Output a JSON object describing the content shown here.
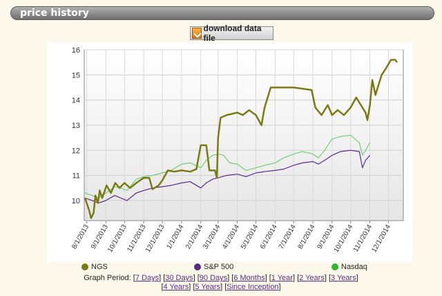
{
  "section": {
    "title": "price history"
  },
  "download": {
    "label": "download data file",
    "icon": "download-file-icon"
  },
  "chart_data": {
    "type": "line",
    "ylim": [
      9.2,
      16
    ],
    "yticks": [
      10,
      11,
      12,
      13,
      14,
      15,
      16
    ],
    "xlabels": [
      "8/1/2013",
      "9/1/2013",
      "10/1/2013",
      "11/1/2013",
      "12/1/2013",
      "1/1/2014",
      "2/1/2014",
      "3/1/2014",
      "4/1/2014",
      "5/1/2014",
      "6/1/2014",
      "7/1/2014",
      "8/1/2014",
      "9/1/2014",
      "10/1/2014",
      "11/1/2014",
      "12/1/2014"
    ],
    "grid": true,
    "legend_position": "bottom",
    "series": [
      {
        "name": "NGS",
        "color": "#7a7a14",
        "points": [
          [
            "2013-07-29",
            10.1
          ],
          [
            "2013-08-01",
            9.9
          ],
          [
            "2013-08-05",
            9.6
          ],
          [
            "2013-08-08",
            9.3
          ],
          [
            "2013-08-12",
            9.5
          ],
          [
            "2013-08-15",
            10.2
          ],
          [
            "2013-08-19",
            9.9
          ],
          [
            "2013-08-22",
            10.4
          ],
          [
            "2013-08-26",
            10.1
          ],
          [
            "2013-09-02",
            10.6
          ],
          [
            "2013-09-09",
            10.3
          ],
          [
            "2013-09-16",
            10.7
          ],
          [
            "2013-09-23",
            10.5
          ],
          [
            "2013-10-01",
            10.7
          ],
          [
            "2013-10-10",
            10.5
          ],
          [
            "2013-10-20",
            10.7
          ],
          [
            "2013-11-01",
            10.9
          ],
          [
            "2013-11-10",
            10.9
          ],
          [
            "2013-11-15",
            10.45
          ],
          [
            "2013-11-25",
            10.6
          ],
          [
            "2013-12-01",
            10.8
          ],
          [
            "2013-12-10",
            11.2
          ],
          [
            "2013-12-20",
            11.15
          ],
          [
            "2014-01-01",
            11.2
          ],
          [
            "2014-01-15",
            11.15
          ],
          [
            "2014-01-25",
            11.25
          ],
          [
            "2014-02-01",
            12.2
          ],
          [
            "2014-02-10",
            12.2
          ],
          [
            "2014-02-15",
            11.2
          ],
          [
            "2014-02-24",
            11.2
          ],
          [
            "2014-02-27",
            10.9
          ],
          [
            "2014-03-01",
            12.5
          ],
          [
            "2014-03-05",
            13.3
          ],
          [
            "2014-03-15",
            13.4
          ],
          [
            "2014-04-01",
            13.5
          ],
          [
            "2014-04-10",
            13.4
          ],
          [
            "2014-04-20",
            13.6
          ],
          [
            "2014-05-01",
            13.4
          ],
          [
            "2014-05-10",
            13.0
          ],
          [
            "2014-05-15",
            13.7
          ],
          [
            "2014-05-25",
            14.5
          ],
          [
            "2014-06-10",
            14.5
          ],
          [
            "2014-07-01",
            14.5
          ],
          [
            "2014-07-30",
            14.4
          ],
          [
            "2014-08-05",
            13.7
          ],
          [
            "2014-08-15",
            13.4
          ],
          [
            "2014-08-25",
            13.8
          ],
          [
            "2014-09-01",
            13.4
          ],
          [
            "2014-09-10",
            13.6
          ],
          [
            "2014-09-20",
            13.4
          ],
          [
            "2014-10-01",
            13.7
          ],
          [
            "2014-10-10",
            14.1
          ],
          [
            "2014-10-20",
            13.7
          ],
          [
            "2014-10-25",
            13.5
          ],
          [
            "2014-10-28",
            13.2
          ],
          [
            "2014-11-01",
            13.8
          ],
          [
            "2014-11-05",
            14.8
          ],
          [
            "2014-11-10",
            14.2
          ],
          [
            "2014-11-20",
            15.0
          ],
          [
            "2014-11-28",
            15.3
          ],
          [
            "2014-12-05",
            15.6
          ],
          [
            "2014-12-12",
            15.6
          ],
          [
            "2014-12-15",
            15.5
          ]
        ]
      },
      {
        "name": "S&P 500",
        "color": "#5a2a8a",
        "points": [
          [
            "2013-07-29",
            10.1
          ],
          [
            "2013-08-10",
            10.0
          ],
          [
            "2013-08-20",
            9.9
          ],
          [
            "2013-09-01",
            10.0
          ],
          [
            "2013-09-15",
            10.2
          ],
          [
            "2013-09-25",
            10.1
          ],
          [
            "2013-10-05",
            10.0
          ],
          [
            "2013-10-20",
            10.3
          ],
          [
            "2013-11-01",
            10.4
          ],
          [
            "2013-11-15",
            10.5
          ],
          [
            "2013-12-01",
            10.55
          ],
          [
            "2013-12-15",
            10.6
          ],
          [
            "2014-01-01",
            10.7
          ],
          [
            "2014-01-15",
            10.75
          ],
          [
            "2014-02-01",
            10.5
          ],
          [
            "2014-02-10",
            10.7
          ],
          [
            "2014-02-20",
            10.85
          ],
          [
            "2014-03-01",
            10.9
          ],
          [
            "2014-03-15",
            11.0
          ],
          [
            "2014-04-01",
            11.05
          ],
          [
            "2014-04-15",
            10.95
          ],
          [
            "2014-05-01",
            11.1
          ],
          [
            "2014-05-15",
            11.15
          ],
          [
            "2014-06-01",
            11.2
          ],
          [
            "2014-06-15",
            11.25
          ],
          [
            "2014-07-01",
            11.4
          ],
          [
            "2014-07-15",
            11.5
          ],
          [
            "2014-08-01",
            11.55
          ],
          [
            "2014-08-10",
            11.45
          ],
          [
            "2014-08-20",
            11.6
          ],
          [
            "2014-09-01",
            11.8
          ],
          [
            "2014-09-15",
            11.95
          ],
          [
            "2014-10-01",
            12.0
          ],
          [
            "2014-10-15",
            11.95
          ],
          [
            "2014-10-20",
            11.3
          ],
          [
            "2014-10-25",
            11.6
          ],
          [
            "2014-11-01",
            11.8
          ]
        ]
      },
      {
        "name": "Nasdaq",
        "color": "#6fd06f",
        "points": [
          [
            "2013-07-29",
            10.3
          ],
          [
            "2013-08-10",
            10.2
          ],
          [
            "2013-08-20",
            10.1
          ],
          [
            "2013-09-01",
            10.3
          ],
          [
            "2013-09-15",
            10.55
          ],
          [
            "2013-09-25",
            10.5
          ],
          [
            "2013-10-05",
            10.4
          ],
          [
            "2013-10-20",
            10.85
          ],
          [
            "2013-11-01",
            10.95
          ],
          [
            "2013-11-15",
            11.0
          ],
          [
            "2013-12-01",
            11.1
          ],
          [
            "2013-12-15",
            11.2
          ],
          [
            "2014-01-01",
            11.45
          ],
          [
            "2014-01-15",
            11.5
          ],
          [
            "2014-02-01",
            11.3
          ],
          [
            "2014-02-10",
            11.6
          ],
          [
            "2014-02-20",
            11.8
          ],
          [
            "2014-03-01",
            11.85
          ],
          [
            "2014-03-10",
            11.8
          ],
          [
            "2014-03-20",
            11.5
          ],
          [
            "2014-04-01",
            11.45
          ],
          [
            "2014-04-15",
            11.2
          ],
          [
            "2014-05-01",
            11.3
          ],
          [
            "2014-05-15",
            11.4
          ],
          [
            "2014-06-01",
            11.5
          ],
          [
            "2014-06-15",
            11.7
          ],
          [
            "2014-07-01",
            11.85
          ],
          [
            "2014-07-15",
            11.95
          ],
          [
            "2014-08-01",
            11.85
          ],
          [
            "2014-08-10",
            11.7
          ],
          [
            "2014-08-20",
            12.0
          ],
          [
            "2014-09-01",
            12.45
          ],
          [
            "2014-09-15",
            12.55
          ],
          [
            "2014-10-01",
            12.6
          ],
          [
            "2014-10-15",
            12.3
          ],
          [
            "2014-10-20",
            11.8
          ],
          [
            "2014-10-25",
            12.0
          ],
          [
            "2014-11-01",
            12.3
          ]
        ]
      }
    ]
  },
  "legend": {
    "ngs": "NGS",
    "sp500": "S&P 500",
    "nasdaq": "Nasdaq"
  },
  "period": {
    "label": "Graph Period:",
    "links": [
      "7 Days",
      "30 Days",
      "90 Days",
      "6 Months",
      "1 Year",
      "2 Years",
      "3 Years",
      "4 Years",
      "5 Years",
      "Since Inception"
    ]
  }
}
